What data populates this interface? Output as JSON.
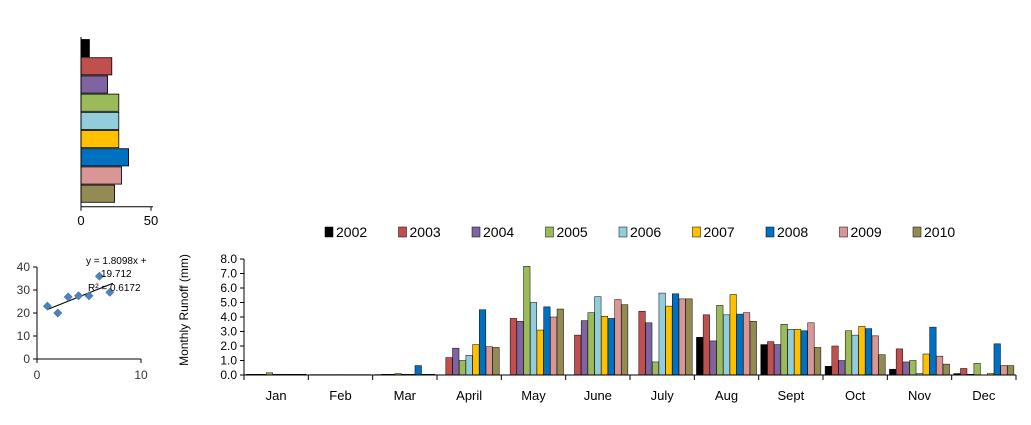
{
  "chart_data": [
    {
      "type": "bar",
      "orientation": "horizontal",
      "categories": [
        "2002",
        "2003",
        "2004",
        "2005",
        "2006",
        "2007",
        "2008",
        "2009",
        "2010"
      ],
      "values": [
        6,
        22,
        19,
        27,
        27,
        27,
        34,
        29,
        24
      ],
      "xlim": [
        0,
        50
      ],
      "xticks": [
        "0",
        "50"
      ],
      "grid": false
    },
    {
      "type": "scatter",
      "x": [
        1,
        2,
        3,
        4,
        5,
        6,
        7
      ],
      "y": [
        23,
        20,
        27,
        27.5,
        27.5,
        36,
        29
      ],
      "xlim": [
        0,
        10
      ],
      "ylim": [
        0,
        40
      ],
      "xticks": [
        "0",
        "10"
      ],
      "yticks": [
        "0",
        "10",
        "20",
        "30",
        "40"
      ],
      "trendline": true,
      "annotation": [
        "y = 1.8098x +",
        "19.712",
        "R² = 0.6172"
      ],
      "grid": false
    },
    {
      "type": "bar",
      "ylabel": "Monthly  Runoff (mm)",
      "ylim": [
        0,
        8
      ],
      "yticks": [
        "0.0",
        "1.0",
        "2.0",
        "3.0",
        "4.0",
        "5.0",
        "6.0",
        "7.0",
        "8.0"
      ],
      "categories": [
        "Jan",
        "Feb",
        "Mar",
        "April",
        "May",
        "June",
        "July",
        "Aug",
        "Sept",
        "Oct",
        "Nov",
        "Dec"
      ],
      "legend_position": "top",
      "grid": false,
      "series": [
        {
          "name": "2002",
          "values": [
            0.05,
            0.03,
            0.03,
            0.0,
            0.0,
            0.0,
            0.0,
            2.6,
            2.1,
            0.6,
            0.4,
            0.1
          ]
        },
        {
          "name": "2003",
          "values": [
            0.05,
            0.03,
            0.05,
            1.2,
            3.9,
            2.75,
            4.4,
            4.15,
            2.3,
            2.0,
            1.8,
            0.45
          ]
        },
        {
          "name": "2004",
          "values": [
            0.05,
            0.03,
            0.05,
            1.85,
            3.7,
            3.75,
            3.6,
            2.35,
            2.1,
            1.0,
            0.9,
            0.05
          ]
        },
        {
          "name": "2005",
          "values": [
            0.15,
            0.03,
            0.1,
            1.0,
            7.5,
            4.3,
            0.9,
            4.8,
            3.5,
            3.05,
            1.0,
            0.8
          ]
        },
        {
          "name": "2006",
          "values": [
            0.05,
            0.03,
            0.05,
            1.35,
            5.0,
            5.4,
            5.65,
            4.15,
            3.15,
            2.75,
            0.1,
            0.0
          ]
        },
        {
          "name": "2007",
          "values": [
            0.05,
            0.03,
            0.05,
            2.1,
            3.1,
            4.05,
            4.75,
            5.55,
            3.15,
            3.35,
            1.45,
            0.1
          ]
        },
        {
          "name": "2008",
          "values": [
            0.05,
            0.03,
            0.65,
            4.5,
            4.7,
            3.9,
            5.6,
            4.2,
            3.05,
            3.2,
            3.3,
            2.15
          ]
        },
        {
          "name": "2009",
          "values": [
            0.05,
            0.03,
            0.05,
            1.95,
            4.0,
            5.2,
            5.25,
            4.3,
            3.6,
            2.7,
            1.3,
            0.65
          ]
        },
        {
          "name": "2010",
          "values": [
            0.05,
            0.03,
            0.05,
            1.9,
            4.55,
            4.85,
            5.25,
            3.7,
            1.9,
            1.4,
            0.75,
            0.65
          ]
        }
      ]
    }
  ],
  "colors": [
    "#000000",
    "#c0504d",
    "#8064a2",
    "#9bbb59",
    "#92cddc",
    "#ffc000",
    "#0070c0",
    "#d99694",
    "#948a54"
  ],
  "marker_color": "#4f81bd"
}
